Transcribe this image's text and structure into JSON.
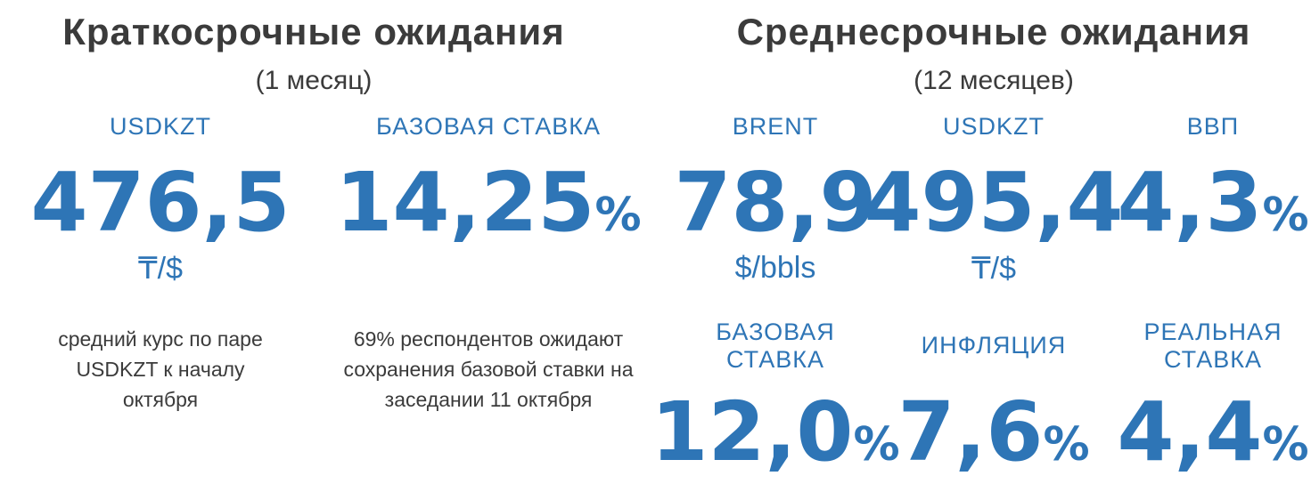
{
  "short_term": {
    "title": "Краткосрочные ожидания",
    "subtitle": "(1 месяц)",
    "items": [
      {
        "label": "USDKZT",
        "value": "476,5",
        "unit": "₸/$",
        "note": "средний курс по паре USDKZT к началу октября"
      },
      {
        "label": "БАЗОВАЯ СТАВКА",
        "value": "14,25",
        "suffix": "%",
        "note": "69% респондентов ожидают сохранения базовой ставки на заседании 11 октября"
      }
    ]
  },
  "medium_term": {
    "title": "Среднесрочные ожидания",
    "subtitle": "(12 месяцев)",
    "items": [
      {
        "label": "BRENT",
        "value": "78,9",
        "unit": "$/bbls"
      },
      {
        "label": "USDKZT",
        "value": "495,4",
        "unit": "₸/$"
      },
      {
        "label": "ВВП",
        "value": "4,3",
        "suffix": "%"
      },
      {
        "label": "БАЗОВАЯ СТАВКА",
        "value": "12,0",
        "suffix": "%"
      },
      {
        "label": "ИНФЛЯЦИЯ",
        "value": "7,6",
        "suffix": "%"
      },
      {
        "label": "РЕАЛЬНАЯ СТАВКА",
        "value": "4,4",
        "suffix": "%"
      }
    ]
  }
}
